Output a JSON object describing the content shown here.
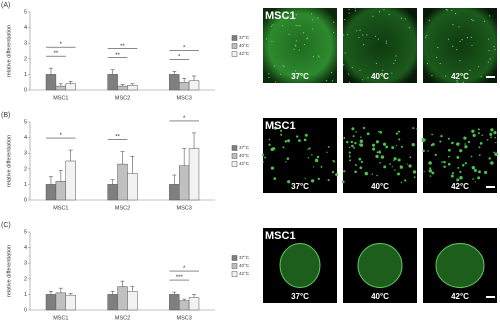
{
  "chart_data": [
    {
      "type": "bar",
      "panel": "(A)",
      "ylabel": "relative differentiation",
      "categories": [
        "MSC1",
        "MSC2",
        "MSC3"
      ],
      "ylim": [
        0,
        5
      ],
      "yticks": [
        0,
        1,
        2,
        3,
        4,
        5
      ],
      "series": [
        {
          "name": "37°C",
          "color": "#7f7f7f",
          "values": [
            1.0,
            1.0,
            1.0
          ],
          "errors": [
            0.4,
            0.3,
            0.2
          ]
        },
        {
          "name": "40°C",
          "color": "#c0c0c0",
          "values": [
            0.25,
            0.25,
            0.5
          ],
          "errors": [
            0.15,
            0.1,
            0.25
          ]
        },
        {
          "name": "42°C",
          "color": "#f2f2f2",
          "values": [
            0.4,
            0.3,
            0.6
          ],
          "errors": [
            0.15,
            0.1,
            0.3
          ]
        }
      ],
      "annotations": [
        {
          "text": "**",
          "category": "MSC1",
          "between": [
            "37°C",
            "40°C"
          ]
        },
        {
          "text": "*",
          "category": "MSC1",
          "between": [
            "37°C",
            "42°C"
          ]
        },
        {
          "text": "**",
          "category": "MSC2",
          "between": [
            "37°C",
            "40°C"
          ]
        },
        {
          "text": "**",
          "category": "MSC2",
          "between": [
            "37°C",
            "42°C"
          ]
        },
        {
          "text": "*",
          "category": "MSC3",
          "between": [
            "37°C",
            "40°C"
          ]
        },
        {
          "text": "*",
          "category": "MSC3",
          "between": [
            "37°C",
            "42°C"
          ]
        }
      ]
    },
    {
      "type": "bar",
      "panel": "(B)",
      "ylabel": "relative differentiation",
      "categories": [
        "MSC1",
        "MSC2",
        "MSC3"
      ],
      "ylim": [
        0,
        5
      ],
      "yticks": [
        0,
        1,
        2,
        3,
        4,
        5
      ],
      "series": [
        {
          "name": "37°C",
          "color": "#7f7f7f",
          "values": [
            1.0,
            1.0,
            1.0
          ],
          "errors": [
            0.5,
            0.3,
            0.6
          ]
        },
        {
          "name": "40°C",
          "color": "#c0c0c0",
          "values": [
            1.2,
            2.3,
            2.2
          ],
          "errors": [
            0.7,
            0.8,
            1.1
          ]
        },
        {
          "name": "42°C",
          "color": "#f2f2f2",
          "values": [
            2.5,
            1.7,
            3.3
          ],
          "errors": [
            0.7,
            1.1,
            1.0
          ]
        }
      ],
      "annotations": [
        {
          "text": "*",
          "category": "MSC1",
          "between": [
            "37°C",
            "42°C"
          ]
        },
        {
          "text": "**",
          "category": "MSC2",
          "between": [
            "37°C",
            "40°C"
          ]
        },
        {
          "text": "*",
          "category": "MSC3",
          "between": [
            "37°C",
            "42°C"
          ]
        }
      ]
    },
    {
      "type": "bar",
      "panel": "(C)",
      "ylabel": "relative differentiation",
      "categories": [
        "MSC1",
        "MSC2",
        "MSC3"
      ],
      "ylim": [
        0,
        5
      ],
      "yticks": [
        0,
        1,
        2,
        3,
        4,
        5
      ],
      "series": [
        {
          "name": "37°C",
          "color": "#7f7f7f",
          "values": [
            1.0,
            1.0,
            1.0
          ],
          "errors": [
            0.2,
            0.2,
            0.15
          ]
        },
        {
          "name": "40°C",
          "color": "#c0c0c0",
          "values": [
            1.1,
            1.5,
            0.6
          ],
          "errors": [
            0.3,
            0.35,
            0.1
          ]
        },
        {
          "name": "42°C",
          "color": "#f2f2f2",
          "values": [
            0.95,
            1.2,
            0.8
          ],
          "errors": [
            0.1,
            0.3,
            0.2
          ]
        }
      ],
      "annotations": [
        {
          "text": "***",
          "category": "MSC3",
          "between": [
            "37°C",
            "40°C"
          ]
        },
        {
          "text": "*",
          "category": "MSC3",
          "between": [
            "37°C",
            "42°C"
          ]
        }
      ]
    }
  ],
  "images": [
    {
      "title": "MSC1",
      "labels": [
        "37°C",
        "40°C",
        "42°C"
      ]
    },
    {
      "title": "MSC1",
      "labels": [
        "37°C",
        "40°C",
        "42°C"
      ]
    },
    {
      "title": "MSC1",
      "labels": [
        "37°C",
        "40°C",
        "42°C"
      ]
    }
  ]
}
